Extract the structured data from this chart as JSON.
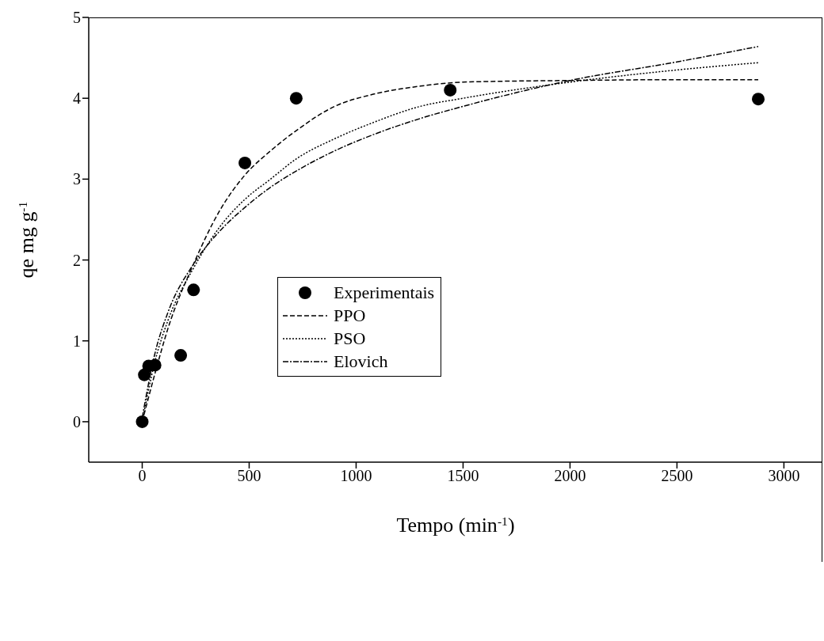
{
  "chart_data": {
    "type": "line",
    "xlabel": "Tempo (min$^{-1}$)",
    "ylabel": "qe mg g$^{-1}$",
    "xlim": [
      -250,
      3180
    ],
    "ylim": [
      -0.5,
      5
    ],
    "xticks": [
      0,
      500,
      1000,
      1500,
      2000,
      2500,
      3000
    ],
    "yticks": [
      0,
      1,
      2,
      3,
      4,
      5
    ],
    "grid": false,
    "legend": "center left",
    "series": [
      {
        "name": "Experimentais",
        "type": "scatter",
        "marker": "circle",
        "color": "#000000",
        "x": [
          0,
          10,
          30,
          60,
          180,
          240,
          480,
          720,
          1440,
          2880
        ],
        "values": [
          0,
          0.58,
          0.69,
          0.7,
          0.82,
          1.63,
          3.2,
          4.0,
          4.1,
          3.99
        ]
      },
      {
        "name": "PPO",
        "marker": "none",
        "line_style": "dashed",
        "color": "#000000",
        "x": [
          0,
          60,
          120,
          240,
          360,
          480,
          600,
          720,
          900,
          1080,
          1300,
          1500,
          2000,
          2500,
          2880
        ],
        "values": [
          0,
          0.6,
          1.15,
          1.95,
          2.6,
          3.05,
          3.35,
          3.6,
          3.9,
          4.05,
          4.15,
          4.2,
          4.22,
          4.23,
          4.23
        ]
      },
      {
        "name": "PSO",
        "marker": "none",
        "line_style": "dotted",
        "color": "#000000",
        "x": [
          0,
          60,
          120,
          240,
          360,
          480,
          600,
          720,
          900,
          1080,
          1300,
          1500,
          2000,
          2500,
          2880
        ],
        "values": [
          0,
          0.75,
          1.25,
          1.9,
          2.4,
          2.75,
          3.0,
          3.25,
          3.5,
          3.7,
          3.9,
          4.0,
          4.2,
          4.35,
          4.44
        ]
      },
      {
        "name": "Elovich",
        "marker": "none",
        "line_style": "dashdot",
        "color": "#000000",
        "x": [
          0,
          60,
          120,
          240,
          360,
          480,
          600,
          720,
          900,
          1080,
          1300,
          1500,
          2000,
          2500,
          2880
        ],
        "values": [
          0.05,
          0.85,
          1.35,
          1.95,
          2.35,
          2.65,
          2.9,
          3.1,
          3.35,
          3.55,
          3.75,
          3.9,
          4.22,
          4.45,
          4.64
        ]
      }
    ]
  }
}
